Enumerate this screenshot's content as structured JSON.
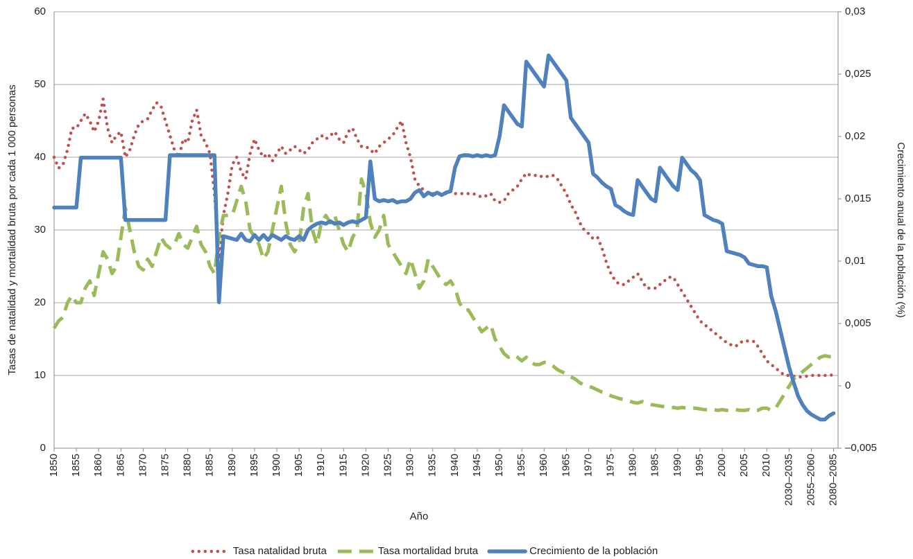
{
  "chart_data": {
    "type": "line",
    "x_label": "Año",
    "y_label": "Tasas de natalidad y mortalidad bruta por cada 1 000 personas",
    "y2_label": "Crecimiento anual de la población (%)",
    "categories": [
      "1850",
      null,
      null,
      null,
      null,
      "1855",
      null,
      null,
      null,
      null,
      "1860",
      null,
      null,
      null,
      null,
      "1865",
      null,
      null,
      null,
      null,
      "1870",
      null,
      null,
      null,
      null,
      "1875",
      null,
      null,
      null,
      null,
      "1880",
      null,
      null,
      null,
      null,
      "1885",
      null,
      null,
      null,
      null,
      "1890",
      null,
      null,
      null,
      null,
      "1895",
      null,
      null,
      null,
      null,
      "1900",
      null,
      null,
      null,
      null,
      "1905",
      null,
      null,
      null,
      null,
      "1910",
      null,
      null,
      null,
      null,
      "1915",
      null,
      null,
      null,
      null,
      "1920",
      null,
      null,
      null,
      null,
      "1925",
      null,
      null,
      null,
      null,
      "1930",
      null,
      null,
      null,
      null,
      "1935",
      null,
      null,
      null,
      null,
      "1940",
      null,
      null,
      null,
      null,
      "1945",
      null,
      null,
      null,
      null,
      "1950",
      null,
      null,
      null,
      null,
      "1955",
      null,
      null,
      null,
      null,
      "1960",
      null,
      null,
      null,
      null,
      "1965",
      null,
      null,
      null,
      null,
      "1970",
      null,
      null,
      null,
      null,
      "1975",
      null,
      null,
      null,
      null,
      "1980",
      null,
      null,
      null,
      null,
      "1985",
      null,
      null,
      null,
      null,
      "1990",
      null,
      null,
      null,
      null,
      "1995",
      null,
      null,
      null,
      null,
      "2000",
      null,
      null,
      null,
      null,
      "2005",
      null,
      null,
      null,
      null,
      "2010",
      null,
      null,
      null,
      null,
      "2030–2035",
      null,
      null,
      null,
      null,
      "2055–2060",
      null,
      null,
      null,
      null,
      "2080–2085",
      null
    ],
    "ylim": [
      0,
      60
    ],
    "yticks": [
      0,
      10,
      20,
      30,
      40,
      50,
      60
    ],
    "y2lim": [
      -0.005,
      0.03
    ],
    "y2ticks": [
      {
        "value": -0.005,
        "label": "–0,005"
      },
      0,
      {
        "value": 0.005,
        "label": "0,005"
      },
      {
        "value": 0.01,
        "label": "0,01"
      },
      {
        "value": 0.015,
        "label": "0,015"
      },
      {
        "value": 0.02,
        "label": "0,02"
      },
      {
        "value": 0.025,
        "label": "0,025"
      },
      {
        "value": 0.03,
        "label": "0,03"
      }
    ],
    "grid": true,
    "legend": "bottom",
    "series": [
      {
        "name": "Tasa natalidad bruta",
        "color": "#c0504d",
        "style": "dotted",
        "values": [
          40,
          38.5,
          39,
          41,
          44,
          44,
          45,
          46,
          45,
          43.5,
          45,
          48,
          44,
          42,
          43,
          43.5,
          40,
          41,
          43,
          44.5,
          45,
          45.3,
          46.5,
          47.5,
          47,
          45,
          43,
          41,
          40,
          42.5,
          42,
          45,
          46.5,
          43,
          42,
          40.5,
          35,
          26,
          32,
          35,
          39,
          40,
          38,
          37,
          40.5,
          42.5,
          41,
          40,
          40.5,
          39.5,
          40.5,
          41.5,
          40.5,
          41,
          41.5,
          41,
          40.5,
          41,
          42,
          42.5,
          43,
          42.5,
          43,
          43.5,
          42.5,
          42,
          43.5,
          44,
          42.5,
          41.5,
          41.5,
          41,
          40.5,
          41.5,
          42,
          42.5,
          43,
          44,
          45,
          42,
          40,
          37,
          36,
          35.5,
          35,
          35,
          35,
          35,
          35,
          35.5,
          35,
          35,
          35,
          35,
          35,
          34.8,
          34.5,
          34.7,
          35,
          34,
          33.8,
          34,
          35,
          35.5,
          36,
          37,
          37.8,
          37.5,
          37.5,
          37.3,
          37.5,
          37.3,
          37.5,
          37,
          36,
          35,
          33.5,
          32.5,
          31,
          30,
          29.5,
          28.8,
          29,
          27.5,
          25.5,
          24,
          23,
          22.5,
          22.5,
          23,
          23.5,
          24,
          23,
          22,
          22,
          22,
          22.5,
          23,
          23.5,
          23.5,
          22.5,
          21.5,
          20.5,
          19.5,
          18.5,
          17.5,
          17,
          16.5,
          16,
          15.5,
          15,
          14.5,
          14.2,
          14,
          14.5,
          14.8,
          14.7,
          14.7,
          14,
          13,
          12,
          11.5,
          11,
          10.5,
          10,
          10,
          9.9,
          9.8,
          9.8,
          9.9,
          10,
          10,
          10,
          10,
          10,
          10.1,
          null
        ]
      },
      {
        "name": "Tasa mortalidad bruta",
        "color": "#9bbb59",
        "style": "dashed",
        "values": [
          16.5,
          17.5,
          18,
          20,
          21,
          20,
          20,
          22,
          23,
          21,
          24,
          27,
          26,
          24,
          25,
          29,
          33,
          30,
          27,
          25,
          24.5,
          26,
          25,
          27,
          29,
          28,
          27.5,
          28,
          29.5,
          28,
          27.5,
          29,
          30.5,
          28,
          27,
          25,
          24,
          29,
          32,
          32,
          32,
          34,
          36,
          34,
          30,
          29,
          28,
          26,
          27,
          30,
          33,
          36,
          31,
          28,
          27,
          28,
          33,
          35,
          30,
          28,
          31,
          32,
          31,
          32,
          30,
          28,
          27,
          29,
          30,
          37,
          35,
          31,
          29,
          30,
          32,
          28,
          27,
          26,
          25,
          24,
          26,
          24,
          22,
          23,
          26,
          25,
          24,
          23,
          22.5,
          23,
          22,
          20,
          19,
          19,
          18,
          17,
          16,
          16.5,
          17,
          15,
          14,
          13,
          12.5,
          12.8,
          12.5,
          12,
          12.5,
          11.8,
          11.5,
          11.5,
          11.8,
          11.7,
          11.3,
          10.8,
          10.5,
          10.2,
          9.8,
          9.5,
          9,
          8.7,
          8.5,
          8.3,
          8,
          7.7,
          7.5,
          7.2,
          7,
          6.8,
          6.7,
          6.5,
          6.3,
          6.2,
          6.4,
          6.2,
          6,
          5.9,
          5.8,
          5.7,
          5.6,
          5.6,
          5.5,
          5.6,
          5.5,
          5.5,
          5.5,
          5.4,
          5.3,
          5.3,
          5.3,
          5.2,
          5.3,
          5.2,
          5.2,
          5.3,
          5.2,
          5.2,
          5.3,
          5.1,
          5.2,
          5.5,
          5.5,
          5.2,
          5.5,
          6.5,
          7.5,
          8.5,
          9.5,
          10,
          10.5,
          11,
          11.5,
          12,
          12.5,
          12.7,
          12.6,
          12.5,
          12.3
        ]
      },
      {
        "name": "Crecimiento de la población",
        "color": "#4f81bd",
        "style": "solid",
        "axis": "y2",
        "values": [
          0.0143,
          0.0143,
          0.0143,
          0.0143,
          0.0143,
          0.0143,
          0.0183,
          0.0183,
          0.0183,
          0.0183,
          0.0183,
          0.0183,
          0.0183,
          0.0183,
          0.0183,
          0.0183,
          0.0133,
          0.0133,
          0.0133,
          0.0133,
          0.0133,
          0.0133,
          0.0133,
          0.0133,
          0.0133,
          0.0133,
          0.0185,
          0.0185,
          0.0185,
          0.0185,
          0.0185,
          0.0185,
          0.0185,
          0.0185,
          0.0185,
          0.0185,
          0.0185,
          0.0067,
          0.012,
          0.0119,
          0.0118,
          0.0117,
          0.0122,
          0.0117,
          0.0116,
          0.0121,
          0.0117,
          0.0121,
          0.0117,
          0.0121,
          0.0119,
          0.0117,
          0.012,
          0.0118,
          0.0117,
          0.012,
          0.0117,
          0.0125,
          0.0128,
          0.013,
          0.0131,
          0.013,
          0.0132,
          0.013,
          0.0131,
          0.0129,
          0.0131,
          0.0132,
          0.0131,
          0.0133,
          0.0135,
          0.018,
          0.015,
          0.0148,
          0.0149,
          0.0148,
          0.0149,
          0.0147,
          0.0148,
          0.0148,
          0.015,
          0.0155,
          0.0157,
          0.0152,
          0.0155,
          0.0153,
          0.0155,
          0.0153,
          0.0155,
          0.0156,
          0.0175,
          0.0184,
          0.0185,
          0.0185,
          0.0184,
          0.0185,
          0.0184,
          0.0185,
          0.0184,
          0.0185,
          0.02,
          0.0225,
          0.022,
          0.0215,
          0.021,
          0.0208,
          0.026,
          0.0255,
          0.025,
          0.0245,
          0.024,
          0.0265,
          0.026,
          0.0255,
          0.025,
          0.0245,
          0.0215,
          0.021,
          0.0205,
          0.02,
          0.0195,
          0.017,
          0.0167,
          0.0163,
          0.016,
          0.0158,
          0.0145,
          0.0143,
          0.014,
          0.0138,
          0.0137,
          0.0165,
          0.016,
          0.0155,
          0.015,
          0.0148,
          0.0175,
          0.017,
          0.0165,
          0.016,
          0.0157,
          0.0183,
          0.0178,
          0.0173,
          0.017,
          0.0165,
          0.0137,
          0.0135,
          0.0133,
          0.0132,
          0.013,
          0.0108,
          0.0107,
          0.0106,
          0.0105,
          0.0103,
          0.0098,
          0.0097,
          0.0096,
          0.0096,
          0.0095,
          0.0072,
          0.006,
          0.0045,
          0.003,
          0.0015,
          0.0003,
          -0.0008,
          -0.0015,
          -0.002,
          -0.0023,
          -0.0025,
          -0.0027,
          -0.0027,
          -0.0024,
          -0.0022,
          null
        ]
      }
    ]
  }
}
